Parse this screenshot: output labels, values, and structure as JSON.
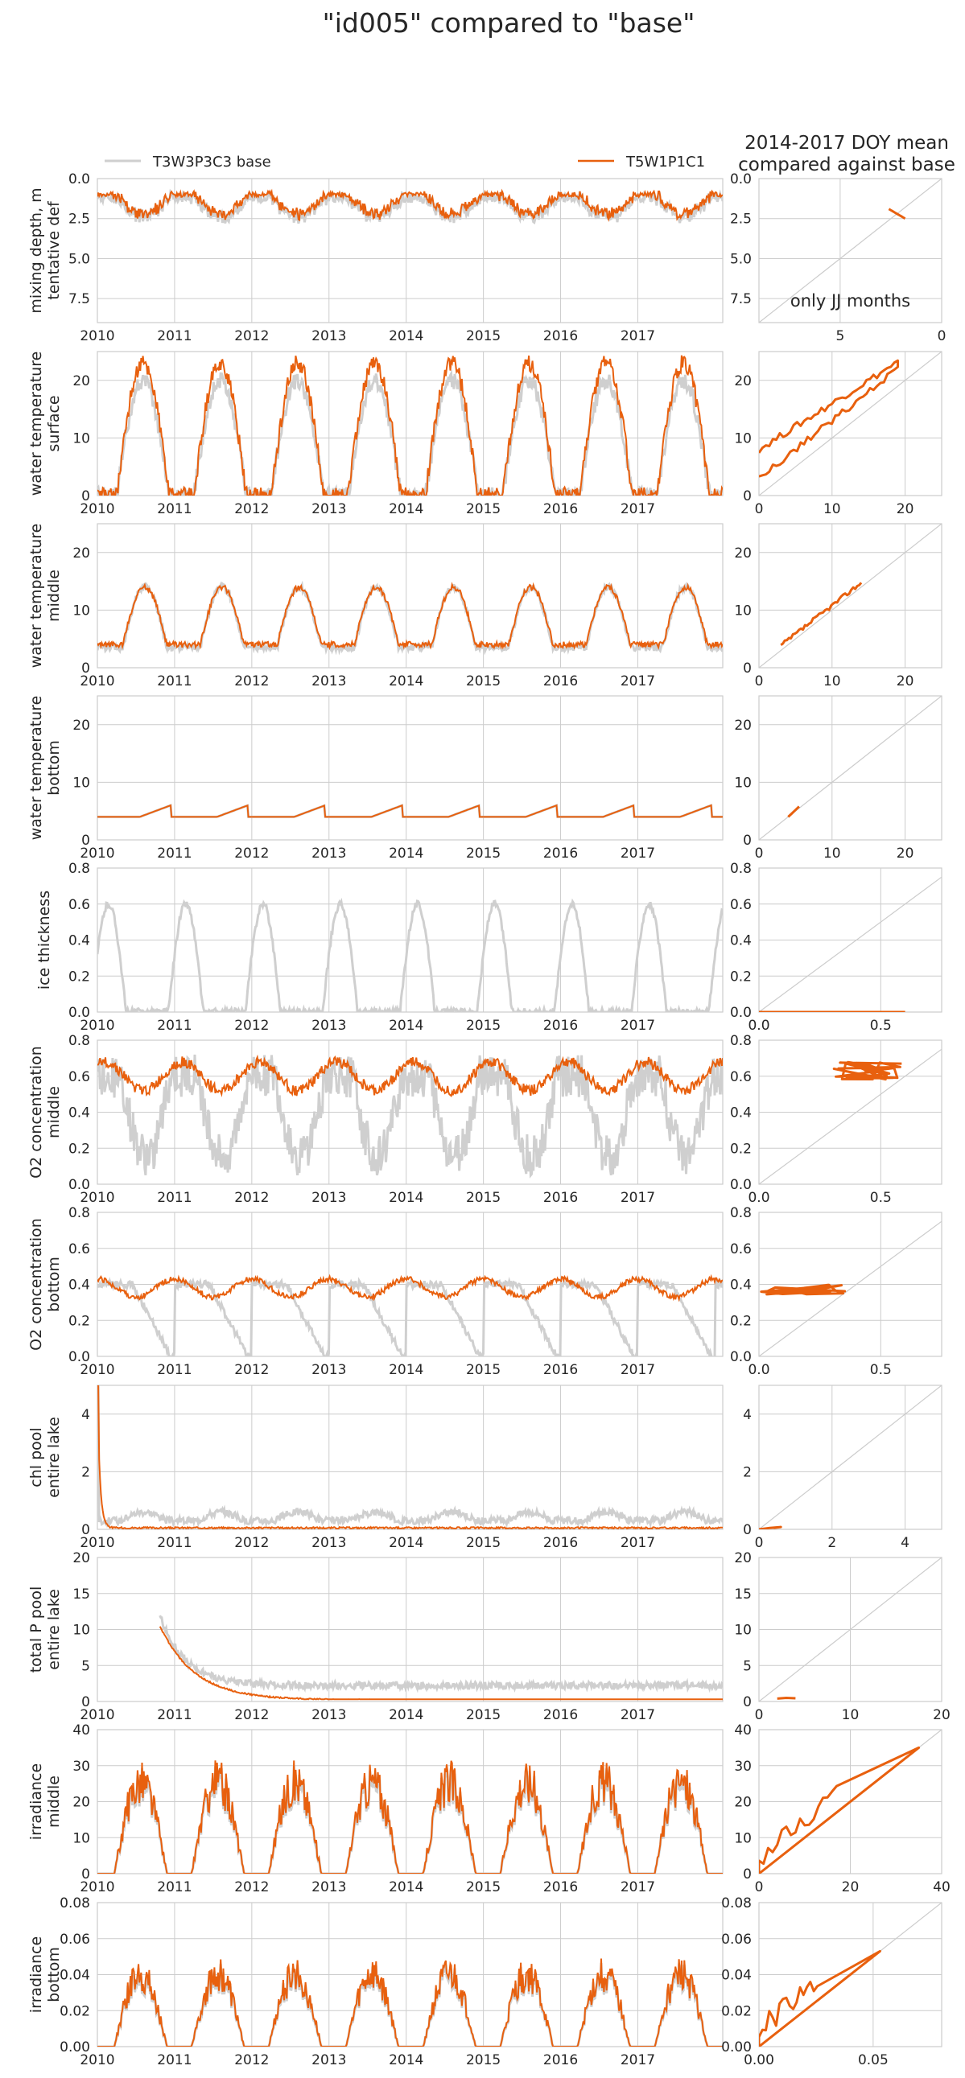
{
  "suptitle": "\"id005\" compared to \"base\"",
  "legend": {
    "base_label": "T3W3P3C3 base",
    "model_label": "T5W1P1C1"
  },
  "right_title": "2014-2017 DOY mean\ncompared against base",
  "colors": {
    "base": "#cfcfcf",
    "model": "#e8600e",
    "grid": "#cccccc",
    "frame": "#cccccc",
    "text": "#262626"
  },
  "chart_data": [
    {
      "type": "line",
      "ylabel": [
        "mixing depth, m",
        "tentative def"
      ],
      "ylim": [
        9,
        0
      ],
      "yticks": [
        "0.0",
        "2.5",
        "5.0",
        "7.5"
      ],
      "ytick_values": [
        0,
        2.5,
        5,
        7.5
      ],
      "x": [
        "2010",
        "2011",
        "2012",
        "2013",
        "2014",
        "2015",
        "2016",
        "2017"
      ],
      "scatter": {
        "type": "scatter",
        "xlim": [
          9,
          0
        ],
        "ylim": [
          9,
          0
        ],
        "xticks": [
          "5",
          "0"
        ],
        "xtick_values": [
          5,
          0
        ],
        "yticks": [
          "0.0",
          "2.5",
          "5.0",
          "7.5"
        ],
        "ytick_values": [
          0,
          2.5,
          5,
          7.5
        ],
        "annotation": "only JJ months"
      }
    },
    {
      "type": "line",
      "ylabel": [
        "water temperature",
        "surface"
      ],
      "ylim": [
        0,
        25
      ],
      "yticks": [
        "0",
        "10",
        "20"
      ],
      "ytick_values": [
        0,
        10,
        20
      ],
      "x": [
        "2010",
        "2011",
        "2012",
        "2013",
        "2014",
        "2015",
        "2016",
        "2017"
      ],
      "scatter": {
        "type": "scatter",
        "xlim": [
          0,
          25
        ],
        "ylim": [
          0,
          25
        ],
        "xticks": [
          "0",
          "10",
          "20"
        ],
        "xtick_values": [
          0,
          10,
          20
        ],
        "yticks": [
          "0",
          "10",
          "20"
        ],
        "ytick_values": [
          0,
          10,
          20
        ]
      }
    },
    {
      "type": "line",
      "ylabel": [
        "water temperature",
        "middle"
      ],
      "ylim": [
        0,
        25
      ],
      "yticks": [
        "0",
        "10",
        "20"
      ],
      "ytick_values": [
        0,
        10,
        20
      ],
      "x": [
        "2010",
        "2011",
        "2012",
        "2013",
        "2014",
        "2015",
        "2016",
        "2017"
      ],
      "scatter": {
        "type": "scatter",
        "xlim": [
          0,
          25
        ],
        "ylim": [
          0,
          25
        ],
        "xticks": [
          "0",
          "10",
          "20"
        ],
        "xtick_values": [
          0,
          10,
          20
        ],
        "yticks": [
          "0",
          "10",
          "20"
        ],
        "ytick_values": [
          0,
          10,
          20
        ]
      }
    },
    {
      "type": "line",
      "ylabel": [
        "water temperature",
        "bottom"
      ],
      "ylim": [
        0,
        25
      ],
      "yticks": [
        "0",
        "10",
        "20"
      ],
      "ytick_values": [
        0,
        10,
        20
      ],
      "x": [
        "2010",
        "2011",
        "2012",
        "2013",
        "2014",
        "2015",
        "2016",
        "2017"
      ],
      "scatter": {
        "type": "scatter",
        "xlim": [
          0,
          25
        ],
        "ylim": [
          0,
          25
        ],
        "xticks": [
          "0",
          "10",
          "20"
        ],
        "xtick_values": [
          0,
          10,
          20
        ],
        "yticks": [
          "0",
          "10",
          "20"
        ],
        "ytick_values": [
          0,
          10,
          20
        ]
      }
    },
    {
      "type": "line",
      "ylabel": [
        "ice thickness"
      ],
      "ylim": [
        0,
        0.8
      ],
      "yticks": [
        "0.0",
        "0.2",
        "0.4",
        "0.6",
        "0.8"
      ],
      "ytick_values": [
        0,
        0.2,
        0.4,
        0.6,
        0.8
      ],
      "x": [
        "2010",
        "2011",
        "2012",
        "2013",
        "2014",
        "2015",
        "2016",
        "2017"
      ],
      "scatter": {
        "type": "scatter",
        "xlim": [
          0,
          0.75
        ],
        "ylim": [
          0,
          0.8
        ],
        "xticks": [
          "0.0",
          "0.5"
        ],
        "xtick_values": [
          0,
          0.5
        ],
        "yticks": [
          "0.0",
          "0.2",
          "0.4",
          "0.6",
          "0.8"
        ],
        "ytick_values": [
          0,
          0.2,
          0.4,
          0.6,
          0.8
        ]
      }
    },
    {
      "type": "line",
      "ylabel": [
        "O2 concentration",
        "middle"
      ],
      "ylim": [
        0,
        0.8
      ],
      "yticks": [
        "0.0",
        "0.2",
        "0.4",
        "0.6",
        "0.8"
      ],
      "ytick_values": [
        0,
        0.2,
        0.4,
        0.6,
        0.8
      ],
      "x": [
        "2010",
        "2011",
        "2012",
        "2013",
        "2014",
        "2015",
        "2016",
        "2017"
      ],
      "scatter": {
        "type": "scatter",
        "xlim": [
          0,
          0.75
        ],
        "ylim": [
          0,
          0.8
        ],
        "xticks": [
          "0.0",
          "0.5"
        ],
        "xtick_values": [
          0,
          0.5
        ],
        "yticks": [
          "0.0",
          "0.2",
          "0.4",
          "0.6",
          "0.8"
        ],
        "ytick_values": [
          0,
          0.2,
          0.4,
          0.6,
          0.8
        ]
      }
    },
    {
      "type": "line",
      "ylabel": [
        "O2 concentration",
        "bottom"
      ],
      "ylim": [
        0,
        0.8
      ],
      "yticks": [
        "0.0",
        "0.2",
        "0.4",
        "0.6",
        "0.8"
      ],
      "ytick_values": [
        0,
        0.2,
        0.4,
        0.6,
        0.8
      ],
      "x": [
        "2010",
        "2011",
        "2012",
        "2013",
        "2014",
        "2015",
        "2016",
        "2017"
      ],
      "scatter": {
        "type": "scatter",
        "xlim": [
          0,
          0.75
        ],
        "ylim": [
          0,
          0.8
        ],
        "xticks": [
          "0.0",
          "0.5"
        ],
        "xtick_values": [
          0,
          0.5
        ],
        "yticks": [
          "0.0",
          "0.2",
          "0.4",
          "0.6",
          "0.8"
        ],
        "ytick_values": [
          0,
          0.2,
          0.4,
          0.6,
          0.8
        ]
      }
    },
    {
      "type": "line",
      "ylabel": [
        "chl pool",
        "entire lake"
      ],
      "ylim": [
        0,
        5
      ],
      "yticks": [
        "0",
        "2",
        "4"
      ],
      "ytick_values": [
        0,
        2,
        4
      ],
      "x": [
        "2010",
        "2011",
        "2012",
        "2013",
        "2014",
        "2015",
        "2016",
        "2017"
      ],
      "scatter": {
        "type": "scatter",
        "xlim": [
          0,
          5
        ],
        "ylim": [
          0,
          5
        ],
        "xticks": [
          "0",
          "2",
          "4"
        ],
        "xtick_values": [
          0,
          2,
          4
        ],
        "yticks": [
          "0",
          "2",
          "4"
        ],
        "ytick_values": [
          0,
          2,
          4
        ]
      }
    },
    {
      "type": "line",
      "ylabel": [
        "total P pool",
        "entire lake"
      ],
      "ylim": [
        0,
        20
      ],
      "yticks": [
        "0",
        "5",
        "10",
        "15",
        "20"
      ],
      "ytick_values": [
        0,
        5,
        10,
        15,
        20
      ],
      "x": [
        "2010",
        "2011",
        "2012",
        "2013",
        "2014",
        "2015",
        "2016",
        "2017"
      ],
      "scatter": {
        "type": "scatter",
        "xlim": [
          0,
          20
        ],
        "ylim": [
          0,
          20
        ],
        "xticks": [
          "0",
          "10",
          "20"
        ],
        "xtick_values": [
          0,
          10,
          20
        ],
        "yticks": [
          "0",
          "5",
          "10",
          "15",
          "20"
        ],
        "ytick_values": [
          0,
          5,
          10,
          15,
          20
        ]
      }
    },
    {
      "type": "line",
      "ylabel": [
        "irradiance",
        "middle"
      ],
      "ylim": [
        0,
        40
      ],
      "yticks": [
        "0",
        "10",
        "20",
        "30",
        "40"
      ],
      "ytick_values": [
        0,
        10,
        20,
        30,
        40
      ],
      "x": [
        "2010",
        "2011",
        "2012",
        "2013",
        "2014",
        "2015",
        "2016",
        "2017"
      ],
      "scatter": {
        "type": "scatter",
        "xlim": [
          0,
          40
        ],
        "ylim": [
          0,
          40
        ],
        "xticks": [
          "0",
          "20",
          "40"
        ],
        "xtick_values": [
          0,
          20,
          40
        ],
        "yticks": [
          "0",
          "10",
          "20",
          "30",
          "40"
        ],
        "ytick_values": [
          0,
          10,
          20,
          30,
          40
        ]
      }
    },
    {
      "type": "line",
      "ylabel": [
        "irradiance",
        "bottom"
      ],
      "ylim": [
        0,
        0.08
      ],
      "yticks": [
        "0.00",
        "0.02",
        "0.04",
        "0.06",
        "0.08"
      ],
      "ytick_values": [
        0,
        0.02,
        0.04,
        0.06,
        0.08
      ],
      "x": [
        "2010",
        "2011",
        "2012",
        "2013",
        "2014",
        "2015",
        "2016",
        "2017"
      ],
      "scatter": {
        "type": "scatter",
        "xlim": [
          0,
          0.08
        ],
        "ylim": [
          0,
          0.08
        ],
        "xticks": [
          "0.00",
          "0.05"
        ],
        "xtick_values": [
          0,
          0.05
        ],
        "yticks": [
          "0.00",
          "0.02",
          "0.04",
          "0.06",
          "0.08"
        ],
        "ytick_values": [
          0,
          0.02,
          0.04,
          0.06,
          0.08
        ]
      }
    }
  ]
}
